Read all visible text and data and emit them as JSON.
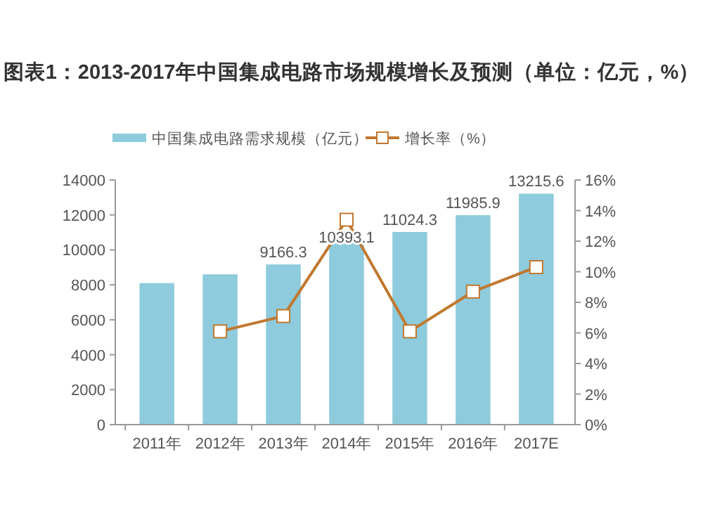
{
  "chart_data": {
    "type": "bar",
    "title": "图表1：2013-2017年中国集成电路市场规模增长及预测（单位：亿元，%）",
    "categories": [
      "2011年",
      "2012年",
      "2013年",
      "2014年",
      "2015年",
      "2016年",
      "2017E"
    ],
    "series": [
      {
        "name": "中国集成电路需求规模（亿元）",
        "color": "#8ecbdc",
        "values": [
          8100,
          8600,
          9166.3,
          10393.1,
          11024.3,
          11985.9,
          13215.6
        ],
        "value_labels": [
          null,
          null,
          "9166.3",
          "10393.1",
          "11024.3",
          "11985.9",
          "13215.6"
        ]
      },
      {
        "name": "增长率（%）",
        "type": "line",
        "axis": "y2",
        "color": "#c0782f",
        "marker": "square",
        "values": [
          null,
          6.1,
          7.1,
          13.4,
          6.1,
          8.7,
          10.3
        ]
      }
    ],
    "ylim": [
      0,
      14000
    ],
    "yticks": [
      0,
      2000,
      4000,
      6000,
      8000,
      10000,
      12000,
      14000
    ],
    "y2lim": [
      0,
      16
    ],
    "y2ticks": [
      {
        "value": 0,
        "label": "0%"
      },
      {
        "value": 2,
        "label": "2%"
      },
      {
        "value": 4,
        "label": "4%"
      },
      {
        "value": 6,
        "label": "6%"
      },
      {
        "value": 8,
        "label": "8%"
      },
      {
        "value": 10,
        "label": "10%"
      },
      {
        "value": 12,
        "label": "12%"
      },
      {
        "value": 14,
        "label": "14%"
      },
      {
        "value": 16,
        "label": "16%"
      }
    ],
    "legend": "top",
    "grid": false
  }
}
